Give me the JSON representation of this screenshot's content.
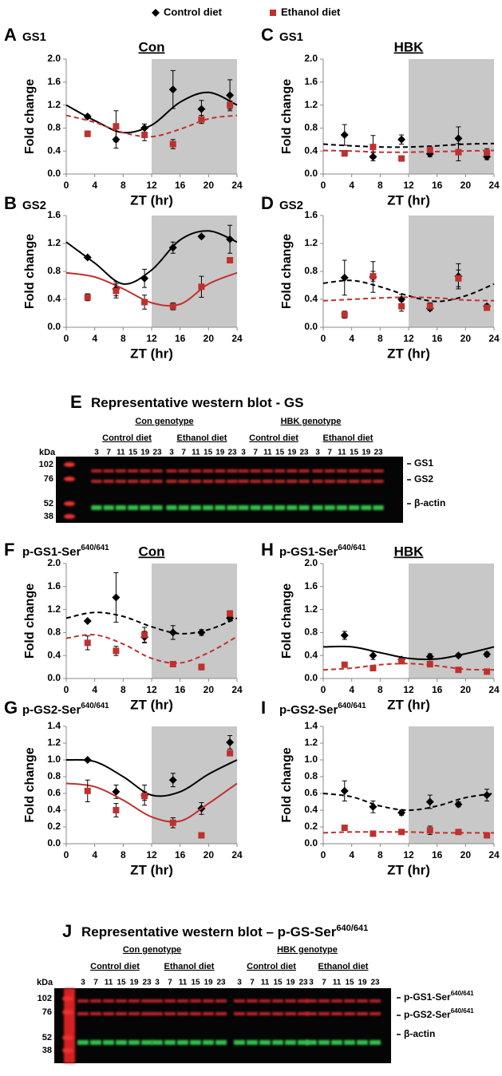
{
  "chart_data": [
    {
      "type": "scatter",
      "panel": "A",
      "title": "GS1",
      "genotype": "Con",
      "ylabel": "Fold change",
      "xlabel": "ZT (hr)",
      "x": [
        3,
        7,
        11,
        15,
        19,
        23
      ],
      "xlim": [
        0,
        24
      ],
      "xticks": [
        0,
        4,
        8,
        12,
        16,
        20,
        24
      ],
      "ylim": [
        0,
        2
      ],
      "yticks": [
        {
          "value": 0,
          "label": "0.0"
        },
        0.4,
        0.8,
        1.2,
        1.6,
        {
          "value": 2,
          "label": "2.0"
        }
      ],
      "shade": [
        12,
        24
      ],
      "curve_x": [
        0,
        4,
        8,
        12,
        16,
        20,
        24
      ],
      "series": [
        {
          "name": "Control diet",
          "color": "#000000",
          "marker": "diamond",
          "values": [
            1.0,
            0.6,
            0.8,
            1.47,
            1.13,
            1.37
          ],
          "errors": [
            0.03,
            0.15,
            0.07,
            0.33,
            0.15,
            0.27
          ],
          "curve": [
            1.2,
            0.93,
            0.72,
            0.85,
            1.25,
            1.42,
            1.2
          ],
          "dashed": false
        },
        {
          "name": "Ethanol diet",
          "color": "#c0302e",
          "marker": "square",
          "values": [
            0.7,
            0.83,
            0.68,
            0.52,
            0.95,
            1.2
          ],
          "errors": [
            0.05,
            0.27,
            0.1,
            0.08,
            0.07,
            0.07
          ],
          "curve": [
            1.02,
            0.9,
            0.72,
            0.65,
            0.78,
            0.96,
            1.02
          ],
          "dashed": true
        }
      ]
    },
    {
      "type": "scatter",
      "panel": "C",
      "title": "GS1",
      "genotype": "HBK",
      "ylabel": "Fold change",
      "xlabel": "ZT (hr)",
      "x": [
        3,
        7,
        11,
        15,
        19,
        23
      ],
      "xlim": [
        0,
        24
      ],
      "xticks": [
        0,
        4,
        8,
        12,
        16,
        20,
        24
      ],
      "ylim": [
        0,
        2
      ],
      "yticks": [
        {
          "value": 0,
          "label": "0.0"
        },
        0.4,
        0.8,
        1.2,
        1.6,
        {
          "value": 2,
          "label": "2.0"
        }
      ],
      "shade": [
        12,
        24
      ],
      "curve_x": [
        0,
        4,
        8,
        12,
        16,
        20,
        24
      ],
      "series": [
        {
          "name": "Control diet",
          "color": "#000000",
          "marker": "diamond",
          "values": [
            0.68,
            0.3,
            0.6,
            0.35,
            0.62,
            0.3
          ],
          "errors": [
            0.18,
            0.07,
            0.08,
            0.05,
            0.2,
            0.05
          ],
          "curve": [
            0.52,
            0.49,
            0.47,
            0.47,
            0.49,
            0.52,
            0.53
          ],
          "dashed": true
        },
        {
          "name": "Ethanol diet",
          "color": "#c0302e",
          "marker": "square",
          "values": [
            0.36,
            0.47,
            0.27,
            0.42,
            0.38,
            0.37
          ],
          "errors": [
            0.05,
            0.2,
            0.03,
            0.05,
            0.15,
            0.07
          ],
          "curve": [
            0.41,
            0.4,
            0.38,
            0.38,
            0.39,
            0.4,
            0.41
          ],
          "dashed": true
        }
      ]
    },
    {
      "type": "scatter",
      "panel": "B",
      "title": "GS2",
      "ylabel": "Fold change",
      "xlabel": "ZT (hr)",
      "x": [
        3,
        7,
        11,
        15,
        19,
        23
      ],
      "xlim": [
        0,
        24
      ],
      "xticks": [
        0,
        4,
        8,
        12,
        16,
        20,
        24
      ],
      "ylim": [
        0,
        1.6
      ],
      "yticks": [
        {
          "value": 0,
          "label": "0.0"
        },
        0.4,
        0.8,
        1.2,
        1.6
      ],
      "shade": [
        12,
        24
      ],
      "curve_x": [
        0,
        4,
        8,
        12,
        16,
        20,
        24
      ],
      "series": [
        {
          "name": "Control diet",
          "color": "#000000",
          "marker": "diamond",
          "values": [
            1.0,
            0.55,
            0.7,
            1.14,
            1.3,
            1.26
          ],
          "errors": [
            0.02,
            0.1,
            0.13,
            0.08,
            0.02,
            0.2
          ],
          "curve": [
            1.22,
            0.92,
            0.62,
            0.82,
            1.25,
            1.38,
            1.22
          ],
          "dashed": false
        },
        {
          "name": "Ethanol diet",
          "color": "#c0302e",
          "marker": "square",
          "values": [
            0.43,
            0.52,
            0.36,
            0.3,
            0.58,
            0.96
          ],
          "errors": [
            0.05,
            0.1,
            0.1,
            0.05,
            0.15,
            0.02
          ],
          "curve": [
            0.78,
            0.72,
            0.55,
            0.35,
            0.33,
            0.62,
            0.78
          ],
          "dashed": false
        }
      ]
    },
    {
      "type": "scatter",
      "panel": "D",
      "title": "GS2",
      "ylabel": "Fold change",
      "xlabel": "ZT (hr)",
      "x": [
        3,
        7,
        11,
        15,
        19,
        23
      ],
      "xlim": [
        0,
        24
      ],
      "xticks": [
        0,
        4,
        8,
        12,
        16,
        20,
        24
      ],
      "ylim": [
        0,
        1.6
      ],
      "yticks": [
        {
          "value": 0,
          "label": "0.0"
        },
        0.4,
        0.8,
        1.2,
        1.6
      ],
      "shade": [
        12,
        24
      ],
      "curve_x": [
        0,
        4,
        8,
        12,
        16,
        20,
        24
      ],
      "series": [
        {
          "name": "Control diet",
          "color": "#000000",
          "marker": "diamond",
          "values": [
            0.71,
            0.72,
            0.4,
            0.27,
            0.73,
            0.3
          ],
          "errors": [
            0.25,
            0.22,
            0.07,
            0.03,
            0.18,
            0.03
          ],
          "curve": [
            0.63,
            0.67,
            0.58,
            0.45,
            0.37,
            0.45,
            0.62
          ],
          "dashed": true
        },
        {
          "name": "Ethanol diet",
          "color": "#c0302e",
          "marker": "square",
          "values": [
            0.18,
            0.73,
            0.3,
            0.3,
            0.7,
            0.28
          ],
          "errors": [
            0.05,
            0.07,
            0.07,
            0.05,
            0.12,
            0.03
          ],
          "curve": [
            0.38,
            0.4,
            0.42,
            0.43,
            0.42,
            0.39,
            0.38
          ],
          "dashed": true
        }
      ]
    },
    {
      "type": "scatter",
      "panel": "F",
      "title": "p-GS1-Ser",
      "title_sup": "640/641",
      "genotype": "Con",
      "ylabel": "Fold change",
      "xlabel": "ZT (hr)",
      "x": [
        3,
        7,
        11,
        15,
        19,
        23
      ],
      "xlim": [
        0,
        24
      ],
      "xticks": [
        0,
        4,
        8,
        12,
        16,
        20,
        24
      ],
      "ylim": [
        0,
        2
      ],
      "yticks": [
        {
          "value": 0,
          "label": "0.0"
        },
        0.4,
        0.8,
        1.2,
        1.6,
        {
          "value": 2,
          "label": "2.0"
        }
      ],
      "shade": [
        12,
        24
      ],
      "curve_x": [
        0,
        4,
        8,
        12,
        16,
        20,
        24
      ],
      "series": [
        {
          "name": "Control diet",
          "color": "#000000",
          "marker": "diamond",
          "values": [
            1.0,
            1.41,
            0.72,
            0.8,
            0.8,
            1.05
          ],
          "errors": [
            0.02,
            0.43,
            0.1,
            0.12,
            0.05,
            0.05
          ],
          "curve": [
            1.05,
            1.15,
            1.08,
            0.9,
            0.78,
            0.85,
            1.05
          ],
          "dashed": true
        },
        {
          "name": "Ethanol diet",
          "color": "#c0302e",
          "marker": "square",
          "values": [
            0.62,
            0.48,
            0.76,
            0.25,
            0.2,
            1.13
          ],
          "errors": [
            0.12,
            0.08,
            0.13,
            0.03,
            0.05,
            0.05
          ],
          "curve": [
            0.7,
            0.76,
            0.6,
            0.35,
            0.27,
            0.45,
            0.73
          ],
          "dashed": true
        }
      ]
    },
    {
      "type": "scatter",
      "panel": "H",
      "title": "p-GS1-Ser",
      "title_sup": "640/641",
      "genotype": "HBK",
      "ylabel": "Fold change",
      "xlabel": "ZT (hr)",
      "x": [
        3,
        7,
        11,
        15,
        19,
        23
      ],
      "xlim": [
        0,
        24
      ],
      "xticks": [
        0,
        4,
        8,
        12,
        16,
        20,
        24
      ],
      "ylim": [
        0,
        2
      ],
      "yticks": [
        {
          "value": 0,
          "label": "0.0"
        },
        0.4,
        0.8,
        1.2,
        1.6,
        {
          "value": 2,
          "label": "2.0"
        }
      ],
      "shade": [
        12,
        24
      ],
      "curve_x": [
        0,
        4,
        8,
        12,
        16,
        20,
        24
      ],
      "series": [
        {
          "name": "Control diet",
          "color": "#000000",
          "marker": "diamond",
          "values": [
            0.75,
            0.4,
            0.33,
            0.38,
            0.4,
            0.42
          ],
          "errors": [
            0.07,
            0.07,
            0.03,
            0.05,
            0.03,
            0.04
          ],
          "curve": [
            0.55,
            0.55,
            0.45,
            0.35,
            0.34,
            0.43,
            0.55
          ],
          "dashed": false
        },
        {
          "name": "Ethanol diet",
          "color": "#c0302e",
          "marker": "square",
          "values": [
            0.24,
            0.18,
            0.3,
            0.25,
            0.15,
            0.12
          ],
          "errors": [
            0.03,
            0.02,
            0.03,
            0.05,
            0.02,
            0.02
          ],
          "curve": [
            0.15,
            0.18,
            0.24,
            0.26,
            0.22,
            0.16,
            0.15
          ],
          "dashed": true
        }
      ]
    },
    {
      "type": "scatter",
      "panel": "G",
      "title": "p-GS2-Ser",
      "title_sup": "640/641",
      "ylabel": "Fold change",
      "xlabel": "ZT (hr)",
      "x": [
        3,
        7,
        11,
        15,
        19,
        23
      ],
      "xlim": [
        0,
        24
      ],
      "xticks": [
        0,
        4,
        8,
        12,
        16,
        20,
        24
      ],
      "ylim": [
        0,
        1.4
      ],
      "yticks": [
        {
          "value": 0,
          "label": "0.0"
        },
        0.2,
        0.4,
        0.6,
        0.8,
        {
          "value": 1,
          "label": "1.0"
        },
        1.2,
        1.4
      ],
      "shade": [
        12,
        24
      ],
      "curve_x": [
        0,
        4,
        8,
        12,
        16,
        20,
        24
      ],
      "series": [
        {
          "name": "Control diet",
          "color": "#000000",
          "marker": "diamond",
          "values": [
            1.0,
            0.62,
            0.58,
            0.76,
            0.42,
            1.21
          ],
          "errors": [
            0.01,
            0.08,
            0.12,
            0.08,
            0.07,
            0.08
          ],
          "curve": [
            1.0,
            0.98,
            0.8,
            0.58,
            0.62,
            0.83,
            1.0
          ],
          "dashed": false
        },
        {
          "name": "Ethanol diet",
          "color": "#c0302e",
          "marker": "square",
          "values": [
            0.63,
            0.4,
            0.57,
            0.25,
            0.1,
            1.08
          ],
          "errors": [
            0.13,
            0.08,
            0.05,
            0.06,
            0.03,
            0.03
          ],
          "curve": [
            0.72,
            0.68,
            0.52,
            0.32,
            0.27,
            0.48,
            0.72
          ],
          "dashed": false
        }
      ]
    },
    {
      "type": "scatter",
      "panel": "I",
      "title": "p-GS2-Ser",
      "title_sup": "640/641",
      "ylabel": "Fold change",
      "xlabel": "ZT (hr)",
      "x": [
        3,
        7,
        11,
        15,
        19,
        23
      ],
      "xlim": [
        0,
        24
      ],
      "xticks": [
        0,
        4,
        8,
        12,
        16,
        20,
        24
      ],
      "ylim": [
        0,
        1.4
      ],
      "yticks": [
        {
          "value": 0,
          "label": "0.0"
        },
        0.2,
        0.4,
        0.6,
        0.8,
        {
          "value": 1,
          "label": "1.0"
        },
        1.2,
        1.4
      ],
      "shade": [
        12,
        24
      ],
      "curve_x": [
        0,
        4,
        8,
        12,
        16,
        20,
        24
      ],
      "series": [
        {
          "name": "Control diet",
          "color": "#000000",
          "marker": "diamond",
          "values": [
            0.63,
            0.44,
            0.37,
            0.5,
            0.47,
            0.58
          ],
          "errors": [
            0.12,
            0.07,
            0.03,
            0.08,
            0.03,
            0.07
          ],
          "curve": [
            0.6,
            0.56,
            0.45,
            0.4,
            0.45,
            0.55,
            0.6
          ],
          "dashed": true
        },
        {
          "name": "Ethanol diet",
          "color": "#c0302e",
          "marker": "square",
          "values": [
            0.19,
            0.12,
            0.14,
            0.16,
            0.14,
            0.1
          ],
          "errors": [
            0.02,
            0.02,
            0.02,
            0.05,
            0.03,
            0.02
          ],
          "curve": [
            0.13,
            0.14,
            0.14,
            0.14,
            0.13,
            0.13,
            0.13
          ],
          "dashed": true
        }
      ]
    }
  ],
  "blots": [
    {
      "panel": "E",
      "title": "Representative western blot - GS",
      "genotypes": [
        "Con genotype",
        "HBK genotype"
      ],
      "diets": [
        "Control diet",
        "Ethanol diet"
      ],
      "lanes": [
        3,
        7,
        11,
        15,
        19,
        23
      ],
      "unit": "kDa",
      "markers": [
        102,
        76,
        52,
        38
      ],
      "bands": [
        {
          "text": "GS1"
        },
        {
          "text": "GS2"
        },
        {
          "text": "β-actin"
        }
      ]
    },
    {
      "panel": "J",
      "title": "Representative western blot – p-GS-Ser",
      "title_sup": "640/641",
      "genotypes": [
        "Con genotype",
        "HBK genotype"
      ],
      "diets": [
        "Control diet",
        "Ethanol diet"
      ],
      "lanes": [
        3,
        7,
        11,
        15,
        19,
        23
      ],
      "unit": "kDa",
      "markers": [
        102,
        76,
        52,
        38
      ],
      "bands": [
        {
          "text": "p-GS1-Ser",
          "sup": "640/641"
        },
        {
          "text": "p-GS2-Ser",
          "sup": "640/641"
        },
        {
          "text": "β-actin"
        }
      ]
    }
  ]
}
